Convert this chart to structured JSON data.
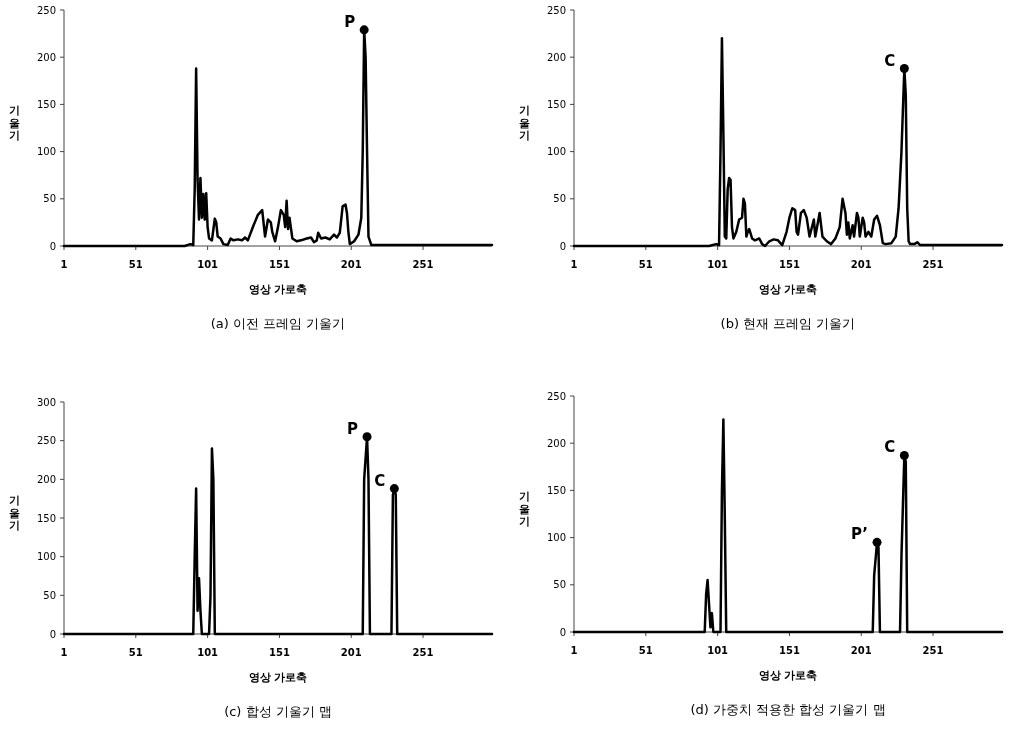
{
  "chart_data": [
    {
      "type": "line",
      "title": "(a) 이전 프레임 기울기",
      "xlabel": "영상 가로축",
      "ylabel": "기울기",
      "xlim": [
        1,
        299
      ],
      "xticks": [
        1,
        51,
        101,
        151,
        201,
        251
      ],
      "ylim": [
        0,
        250
      ],
      "yticks": [
        0,
        50,
        100,
        150,
        200,
        250
      ],
      "annotations": [
        {
          "text": "P",
          "x": 210,
          "y": 229
        }
      ],
      "series": [
        {
          "color": "#000000",
          "x": [
            1,
            85,
            89,
            91,
            92,
            93,
            94,
            95,
            96,
            97,
            98,
            99,
            100,
            101,
            102,
            104,
            106,
            107,
            108,
            110,
            112,
            115,
            117,
            119,
            122,
            125,
            127,
            129,
            133,
            136,
            139,
            141,
            143,
            145,
            146,
            148,
            150,
            152,
            154,
            155,
            156,
            157,
            158,
            160,
            163,
            166,
            170,
            173,
            175,
            177,
            178,
            180,
            183,
            186,
            189,
            191,
            193,
            195,
            197,
            198,
            199,
            200,
            203,
            206,
            208,
            209,
            210,
            211,
            212,
            213,
            215,
            299
          ],
          "values": [
            0,
            0,
            2,
            1,
            60,
            188,
            70,
            28,
            72,
            30,
            55,
            28,
            56,
            20,
            8,
            6,
            29,
            25,
            10,
            8,
            2,
            1,
            8,
            6,
            7,
            6,
            9,
            6,
            22,
            33,
            38,
            10,
            28,
            25,
            15,
            5,
            20,
            38,
            33,
            20,
            48,
            18,
            30,
            8,
            5,
            6,
            8,
            9,
            4,
            6,
            14,
            8,
            9,
            7,
            12,
            9,
            14,
            42,
            44,
            35,
            15,
            2,
            5,
            12,
            30,
            100,
            229,
            200,
            100,
            10,
            1,
            1
          ]
        }
      ]
    },
    {
      "type": "line",
      "title": "(b) 현재 프레임 기울기",
      "xlabel": "영상 가로축",
      "ylabel": "기울기",
      "xlim": [
        1,
        299
      ],
      "xticks": [
        1,
        51,
        101,
        151,
        201,
        251
      ],
      "ylim": [
        0,
        250
      ],
      "yticks": [
        0,
        50,
        100,
        150,
        200,
        250
      ],
      "annotations": [
        {
          "text": "C",
          "x": 231,
          "y": 188
        }
      ],
      "series": [
        {
          "color": "#000000",
          "x": [
            1,
            95,
            100,
            102,
            103,
            104,
            105,
            106,
            107,
            108,
            109,
            110,
            111,
            112,
            114,
            116,
            118,
            119,
            120,
            121,
            122,
            123,
            125,
            127,
            130,
            132,
            134,
            137,
            140,
            143,
            146,
            149,
            151,
            153,
            155,
            156,
            157,
            159,
            161,
            163,
            165,
            167,
            168,
            169,
            170,
            172,
            174,
            177,
            180,
            183,
            186,
            188,
            190,
            191,
            192,
            193,
            195,
            196,
            198,
            199,
            200,
            202,
            203,
            204,
            206,
            208,
            210,
            212,
            214,
            216,
            218,
            222,
            225,
            227,
            229,
            231,
            232,
            233,
            234,
            235,
            238,
            240,
            242,
            299
          ],
          "values": [
            0,
            0,
            2,
            1,
            100,
            220,
            120,
            10,
            8,
            60,
            72,
            70,
            20,
            8,
            15,
            28,
            30,
            50,
            45,
            10,
            15,
            18,
            8,
            6,
            8,
            2,
            0,
            5,
            7,
            6,
            1,
            15,
            30,
            40,
            38,
            15,
            12,
            35,
            38,
            30,
            10,
            22,
            28,
            10,
            18,
            35,
            10,
            5,
            2,
            8,
            20,
            50,
            35,
            12,
            25,
            8,
            22,
            10,
            35,
            30,
            10,
            30,
            25,
            10,
            15,
            10,
            28,
            32,
            22,
            3,
            2,
            3,
            10,
            40,
            100,
            188,
            160,
            40,
            5,
            2,
            2,
            4,
            1,
            1
          ]
        }
      ]
    },
    {
      "type": "line",
      "title": "(c) 합성 기울기 맵",
      "xlabel": "영상 가로축",
      "ylabel": "기울기",
      "xlim": [
        1,
        299
      ],
      "xticks": [
        1,
        51,
        101,
        151,
        201,
        251
      ],
      "ylim": [
        0,
        300
      ],
      "yticks": [
        0,
        50,
        100,
        150,
        200,
        250,
        300
      ],
      "annotations": [
        {
          "text": "P",
          "x": 212,
          "y": 255
        },
        {
          "text": "C",
          "x": 231,
          "y": 188
        }
      ],
      "series": [
        {
          "color": "#000000",
          "x": [
            1,
            91,
            92,
            93,
            94,
            95,
            96,
            97,
            102,
            103,
            104,
            105,
            106,
            209,
            210,
            212,
            213,
            214,
            229,
            230,
            231,
            232,
            233,
            299
          ],
          "values": [
            0,
            0,
            100,
            188,
            30,
            72,
            30,
            0,
            0,
            50,
            240,
            200,
            0,
            0,
            200,
            255,
            200,
            0,
            0,
            180,
            188,
            180,
            0,
            0
          ]
        }
      ]
    },
    {
      "type": "line",
      "title": "(d) 가중치 적용한 합성 기울기 맵",
      "xlabel": "영상 가로축",
      "ylabel": "기울기",
      "xlim": [
        1,
        299
      ],
      "xticks": [
        1,
        51,
        101,
        151,
        201,
        251
      ],
      "ylim": [
        0,
        250
      ],
      "yticks": [
        0,
        50,
        100,
        150,
        200,
        250
      ],
      "annotations": [
        {
          "text": "P’",
          "x": 212,
          "y": 95
        },
        {
          "text": "C",
          "x": 231,
          "y": 187
        }
      ],
      "series": [
        {
          "color": "#000000",
          "x": [
            1,
            92,
            93,
            94,
            95,
            96,
            97,
            98,
            103,
            104,
            105,
            106,
            107,
            209,
            210,
            212,
            213,
            214,
            228,
            229,
            231,
            232,
            233,
            299
          ],
          "values": [
            0,
            0,
            40,
            55,
            30,
            5,
            20,
            0,
            0,
            150,
            225,
            120,
            0,
            0,
            60,
            95,
            90,
            0,
            0,
            80,
            187,
            180,
            0,
            0
          ]
        }
      ]
    }
  ]
}
